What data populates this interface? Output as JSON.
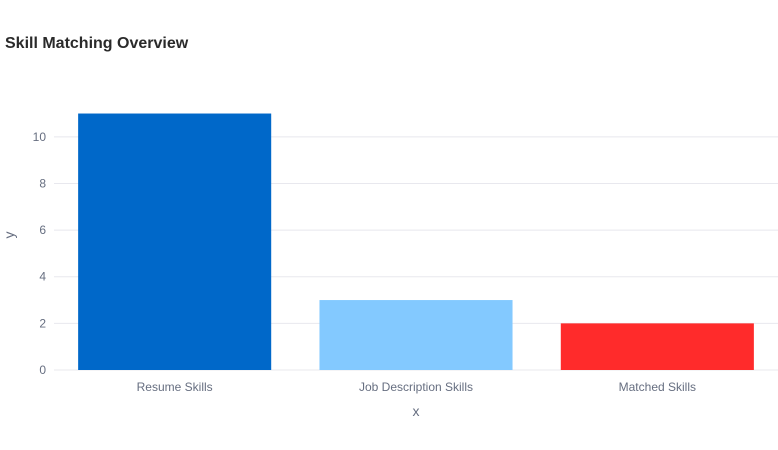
{
  "chart_data": {
    "type": "bar",
    "title": "Skill Matching Overview",
    "xlabel": "x",
    "ylabel": "y",
    "categories": [
      "Resume Skills",
      "Job Description Skills",
      "Matched Skills"
    ],
    "values": [
      11,
      3,
      2
    ],
    "colors": [
      "#0068c9",
      "#83c9ff",
      "#ff2b2b"
    ],
    "ylim": [
      0,
      11.58
    ],
    "yticks": [
      0,
      2,
      4,
      6,
      8,
      10
    ],
    "grid": true,
    "legend": "none"
  }
}
